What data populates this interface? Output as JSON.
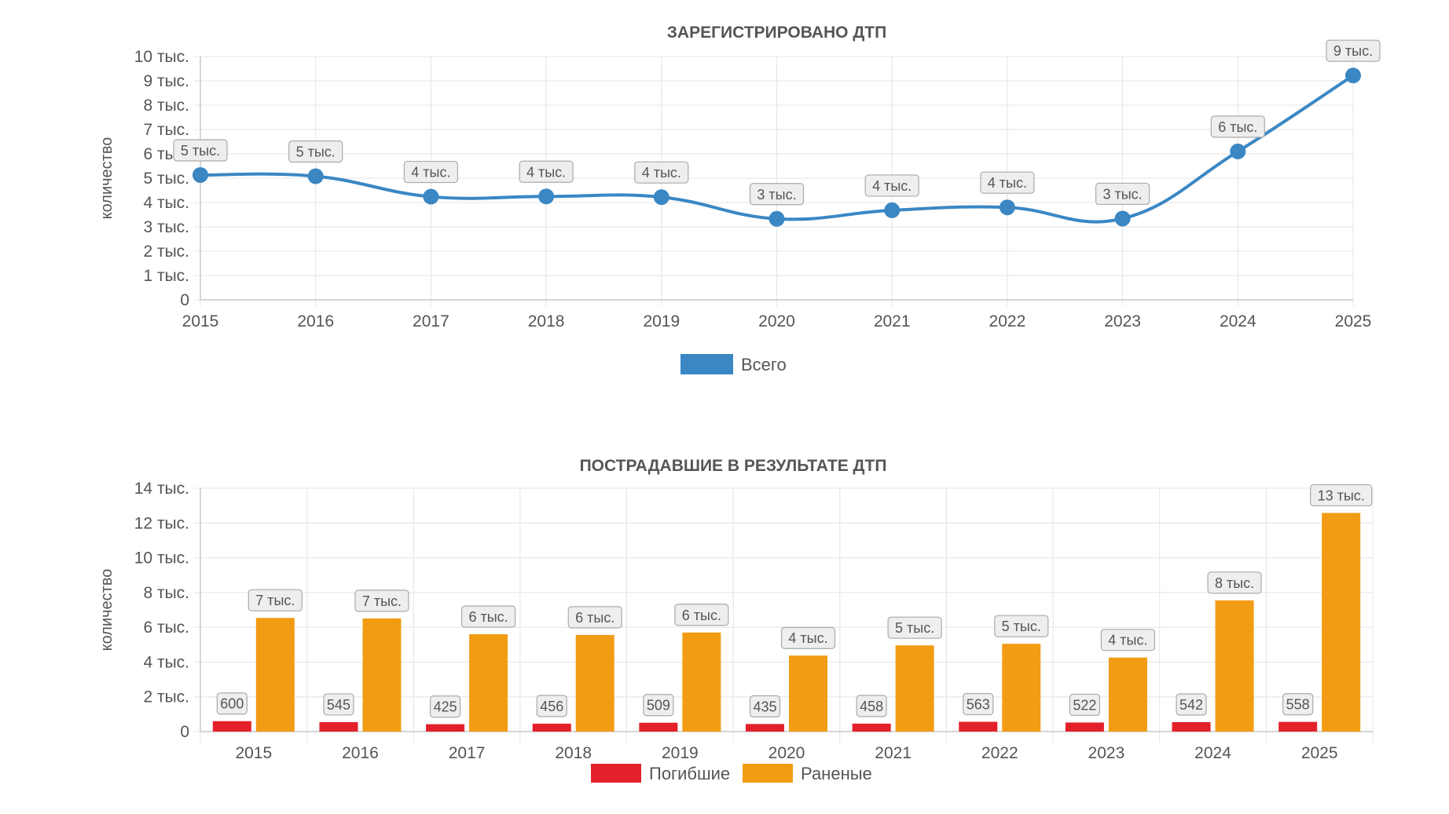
{
  "chart_data": [
    {
      "type": "line",
      "title": "ЗАРЕГИСТРИРОВАНО ДТП",
      "ylabel": "количество",
      "ylim": [
        0,
        10000
      ],
      "yticks": [
        {
          "value": 0,
          "label": "0"
        },
        {
          "value": 1000,
          "label": "1 тыс."
        },
        {
          "value": 2000,
          "label": "2 тыс."
        },
        {
          "value": 3000,
          "label": "3 тыс."
        },
        {
          "value": 4000,
          "label": "4 тыс."
        },
        {
          "value": 5000,
          "label": "5 тыс."
        },
        {
          "value": 6000,
          "label": "6 тыс."
        },
        {
          "value": 7000,
          "label": "7 тыс."
        },
        {
          "value": 8000,
          "label": "8 тыс."
        },
        {
          "value": 9000,
          "label": "9 тыс."
        },
        {
          "value": 10000,
          "label": "10 тыс."
        }
      ],
      "categories": [
        "2015",
        "2016",
        "2017",
        "2018",
        "2019",
        "2020",
        "2021",
        "2022",
        "2023",
        "2024",
        "2025"
      ],
      "series": [
        {
          "name": "Всего",
          "color": "#3a87c4",
          "values": [
            5130,
            5080,
            4240,
            4250,
            4220,
            3330,
            3680,
            3800,
            3340,
            6100,
            9220
          ],
          "labels": [
            "5 тыс.",
            "5 тыс.",
            "4 тыс.",
            "4 тыс.",
            "4 тыс.",
            "3 тыс.",
            "4 тыс.",
            "4 тыс.",
            "3 тыс.",
            "6 тыс.",
            "9 тыс."
          ]
        }
      ],
      "grid": true,
      "legend": "bottom"
    },
    {
      "type": "bar",
      "title": "ПОСТРАДАВШИЕ В РЕЗУЛЬТАТЕ ДТП",
      "ylabel": "количество",
      "ylim": [
        0,
        14000
      ],
      "yticks": [
        {
          "value": 0,
          "label": "0"
        },
        {
          "value": 2000,
          "label": "2 тыс."
        },
        {
          "value": 4000,
          "label": "4 тыс."
        },
        {
          "value": 6000,
          "label": "6 тыс."
        },
        {
          "value": 8000,
          "label": "8 тыс."
        },
        {
          "value": 10000,
          "label": "10 тыс."
        },
        {
          "value": 12000,
          "label": "12 тыс."
        },
        {
          "value": 14000,
          "label": "14 тыс."
        }
      ],
      "categories": [
        "2015",
        "2016",
        "2017",
        "2018",
        "2019",
        "2020",
        "2021",
        "2022",
        "2023",
        "2024",
        "2025"
      ],
      "series": [
        {
          "name": "Погибшие",
          "color": "#e3212b",
          "values": [
            600,
            545,
            425,
            456,
            509,
            435,
            458,
            563,
            522,
            542,
            558
          ],
          "labels": [
            "600",
            "545",
            "425",
            "456",
            "509",
            "435",
            "458",
            "563",
            "522",
            "542",
            "558"
          ]
        },
        {
          "name": "Раненые",
          "color": "#f29c14",
          "values": [
            6540,
            6510,
            5600,
            5560,
            5700,
            4370,
            4960,
            5050,
            4260,
            7550,
            12580
          ],
          "labels": [
            "7 тыс.",
            "7 тыс.",
            "6 тыс.",
            "6 тыс.",
            "6 тыс.",
            "4 тыс.",
            "5 тыс.",
            "5 тыс.",
            "4 тыс.",
            "8 тыс.",
            "13 тыс."
          ]
        }
      ],
      "grid": true,
      "legend": "bottom"
    }
  ]
}
